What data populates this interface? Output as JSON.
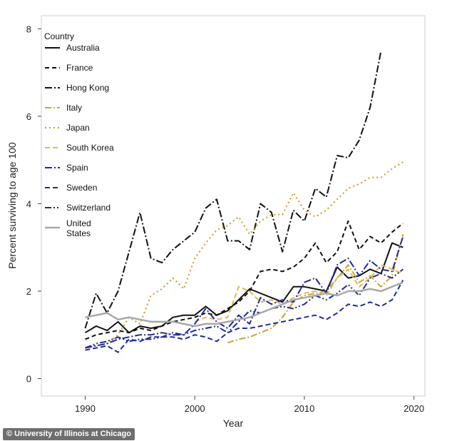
{
  "credit": "© University of Illinois at Chicago",
  "chart_data": {
    "type": "line",
    "title": "",
    "xlabel": "Year",
    "ylabel": "Percent surviving to age 100",
    "xlim": [
      1986,
      2021
    ],
    "ylim": [
      -0.4,
      8.3
    ],
    "xticks": [
      1990,
      2000,
      2010,
      2020
    ],
    "yticks": [
      0,
      2,
      4,
      6,
      8
    ],
    "grid": false,
    "legend_title": "Country",
    "legend_position": "top-left",
    "series": [
      {
        "name": "Australia",
        "color": "#111111",
        "dash": "solid",
        "width": 2,
        "x": [
          1990,
          1991,
          1992,
          1993,
          1994,
          1995,
          1996,
          1997,
          1998,
          1999,
          2000,
          2001,
          2002,
          2003,
          2004,
          2005,
          2006,
          2007,
          2008,
          2009,
          2010,
          2011,
          2012,
          2013,
          2014,
          2015,
          2016,
          2017,
          2018,
          2019
        ],
        "y": [
          1.05,
          1.2,
          1.1,
          1.3,
          1.05,
          1.2,
          1.15,
          1.2,
          1.4,
          1.45,
          1.45,
          1.65,
          1.45,
          1.55,
          1.8,
          2.05,
          1.95,
          1.85,
          1.75,
          2.1,
          2.1,
          2.05,
          2.0,
          2.55,
          2.3,
          2.35,
          2.5,
          2.4,
          3.1,
          3.0
        ]
      },
      {
        "name": "France",
        "color": "#111111",
        "dash": "6,4",
        "width": 2,
        "x": [
          1990,
          1991,
          1992,
          1993,
          1994,
          1995,
          1996,
          1997,
          1998,
          1999,
          2000,
          2001,
          2002,
          2003,
          2004,
          2005,
          2006,
          2007,
          2008,
          2009,
          2010,
          2011,
          2012,
          2013,
          2014,
          2015,
          2016,
          2017,
          2018,
          2019
        ],
        "y": [
          0.9,
          1.0,
          1.05,
          1.1,
          1.05,
          1.15,
          1.1,
          1.2,
          1.3,
          1.35,
          1.4,
          1.5,
          1.45,
          1.6,
          1.75,
          2.0,
          2.45,
          2.5,
          2.45,
          2.55,
          2.75,
          3.1,
          2.65,
          2.9,
          3.6,
          2.95,
          3.25,
          3.1,
          3.35,
          3.55
        ]
      },
      {
        "name": "Hong Kong",
        "color": "#111111",
        "dash": "10,3,2,3",
        "width": 2,
        "x": [
          1990,
          1991,
          1992,
          1993,
          1994,
          1995,
          1996,
          1997,
          1998,
          1999,
          2000,
          2001,
          2002,
          2003,
          2004,
          2005,
          2006,
          2007,
          2008,
          2009,
          2010,
          2011,
          2012,
          2013,
          2014,
          2015,
          2016,
          2017
        ],
        "y": [
          1.15,
          1.95,
          1.5,
          2.0,
          2.9,
          3.8,
          2.75,
          2.65,
          2.95,
          3.15,
          3.35,
          3.9,
          4.1,
          3.15,
          3.15,
          2.95,
          4.0,
          3.8,
          2.9,
          3.85,
          3.6,
          4.35,
          4.15,
          5.1,
          5.05,
          5.45,
          6.2,
          7.5
        ]
      },
      {
        "name": "Italy",
        "color": "#d4a033",
        "dash": "9,3,2,3",
        "width": 2,
        "x": [
          2003,
          2004,
          2005,
          2006,
          2007,
          2008,
          2009,
          2010,
          2011,
          2012,
          2013,
          2014,
          2015,
          2016,
          2017,
          2018,
          2019
        ],
        "y": [
          0.82,
          0.9,
          0.95,
          1.05,
          1.15,
          1.4,
          1.75,
          1.9,
          1.95,
          2.0,
          2.3,
          2.6,
          2.2,
          2.35,
          2.1,
          2.35,
          3.3
        ]
      },
      {
        "name": "Japan",
        "color": "#d4a033",
        "dash": "2,4",
        "width": 2.2,
        "x": [
          1990,
          1991,
          1992,
          1993,
          1994,
          1995,
          1996,
          1997,
          1998,
          1999,
          2000,
          2001,
          2002,
          2003,
          2004,
          2005,
          2006,
          2007,
          2008,
          2009,
          2010,
          2011,
          2012,
          2013,
          2014,
          2015,
          2016,
          2017,
          2018,
          2019
        ],
        "y": [
          0.7,
          0.75,
          0.8,
          1.0,
          1.4,
          1.25,
          1.9,
          2.05,
          2.3,
          2.05,
          2.75,
          3.1,
          3.4,
          3.5,
          3.7,
          3.3,
          3.6,
          3.75,
          3.75,
          4.25,
          3.85,
          3.7,
          3.85,
          4.1,
          4.35,
          4.45,
          4.6,
          4.6,
          4.8,
          4.95
        ]
      },
      {
        "name": "South Korea",
        "color": "#e0b75c",
        "dash": "7,4",
        "width": 2,
        "x": [
          2000,
          2001,
          2002,
          2003,
          2004,
          2005,
          2006,
          2007,
          2008,
          2009,
          2010,
          2011,
          2012,
          2013,
          2014,
          2015,
          2016,
          2017,
          2018,
          2019
        ],
        "y": [
          1.3,
          1.4,
          1.35,
          1.4,
          2.1,
          2.0,
          1.75,
          1.8,
          1.7,
          1.85,
          1.95,
          2.0,
          1.9,
          2.3,
          2.5,
          2.1,
          2.3,
          2.6,
          2.5,
          2.4
        ]
      },
      {
        "name": "Spain",
        "color": "#1f2a99",
        "dash": "10,3,2,3",
        "width": 2,
        "x": [
          1990,
          1991,
          1992,
          1993,
          1994,
          1995,
          1996,
          1997,
          1998,
          1999,
          2000,
          2001,
          2002,
          2003,
          2004,
          2005,
          2006,
          2007,
          2008,
          2009,
          2010,
          2011,
          2012,
          2013,
          2014,
          2015,
          2016,
          2017,
          2018,
          2019
        ],
        "y": [
          0.7,
          0.75,
          0.8,
          0.9,
          0.95,
          1.0,
          1.0,
          1.05,
          1.0,
          1.0,
          1.25,
          1.6,
          1.3,
          1.15,
          1.45,
          1.25,
          1.85,
          1.7,
          1.8,
          1.75,
          2.2,
          2.3,
          1.95,
          2.6,
          2.75,
          2.35,
          2.7,
          2.5,
          2.45,
          3.25
        ]
      },
      {
        "name": "Sweden",
        "color": "#1f2a99",
        "dash": "7,4",
        "width": 2,
        "x": [
          1990,
          1991,
          1992,
          1993,
          1994,
          1995,
          1996,
          1997,
          1998,
          1999,
          2000,
          2001,
          2002,
          2003,
          2004,
          2005,
          2006,
          2007,
          2008,
          2009,
          2010,
          2011,
          2012,
          2013,
          2014,
          2015,
          2016,
          2017,
          2018,
          2019
        ],
        "y": [
          0.65,
          0.7,
          0.75,
          0.6,
          0.9,
          0.85,
          0.95,
          0.95,
          0.95,
          0.9,
          1.0,
          0.95,
          0.85,
          1.05,
          1.15,
          1.15,
          1.2,
          1.25,
          1.3,
          1.35,
          1.4,
          1.45,
          1.35,
          1.5,
          1.7,
          1.65,
          1.75,
          1.65,
          1.8,
          2.25
        ]
      },
      {
        "name": "Switzerland",
        "color": "#1f2a99",
        "dash": "9,3,2,3,2,3",
        "width": 2,
        "x": [
          1990,
          1991,
          1992,
          1993,
          1994,
          1995,
          1996,
          1997,
          1998,
          1999,
          2000,
          2001,
          2002,
          2003,
          2004,
          2005,
          2006,
          2007,
          2008,
          2009,
          2010,
          2011,
          2012,
          2013,
          2014,
          2015,
          2016,
          2017,
          2018,
          2019
        ],
        "y": [
          0.7,
          0.8,
          0.85,
          0.95,
          0.85,
          0.9,
          0.9,
          0.95,
          1.05,
          1.0,
          1.1,
          1.15,
          1.2,
          1.05,
          1.3,
          1.55,
          1.5,
          1.6,
          1.65,
          1.6,
          1.7,
          1.9,
          1.8,
          1.95,
          2.15,
          1.9,
          2.3,
          2.4,
          2.3,
          2.5
        ]
      },
      {
        "name": "United States",
        "color": "#a8a8a8",
        "dash": "solid",
        "width": 2.5,
        "x": [
          1990,
          1991,
          1992,
          1993,
          1994,
          1995,
          1996,
          1997,
          1998,
          1999,
          2000,
          2001,
          2002,
          2003,
          2004,
          2005,
          2006,
          2007,
          2008,
          2009,
          2010,
          2011,
          2012,
          2013,
          2014,
          2015,
          2016,
          2017,
          2018,
          2019
        ],
        "y": [
          1.4,
          1.45,
          1.5,
          1.35,
          1.4,
          1.35,
          1.3,
          1.3,
          1.3,
          1.25,
          1.2,
          1.25,
          1.25,
          1.3,
          1.35,
          1.4,
          1.5,
          1.6,
          1.7,
          1.8,
          1.85,
          1.9,
          1.95,
          1.9,
          2.0,
          2.0,
          2.05,
          2.0,
          2.1,
          2.2
        ]
      }
    ]
  }
}
